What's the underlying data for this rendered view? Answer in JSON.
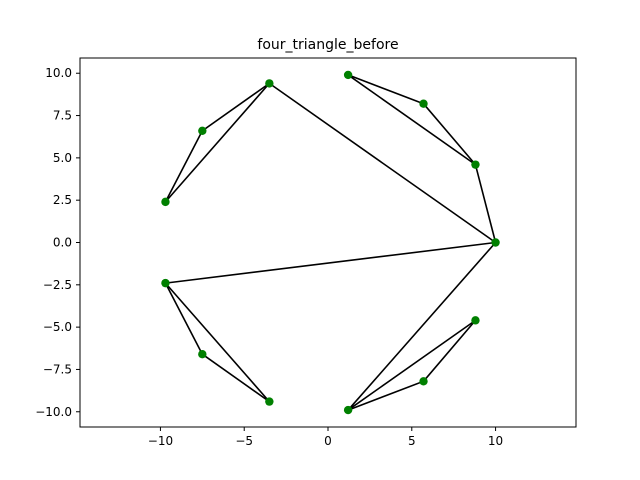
{
  "chart_data": {
    "type": "scatter",
    "title": "four_triangle_before",
    "xlabel": "",
    "ylabel": "",
    "xlim": [
      -14.8,
      14.8
    ],
    "ylim": [
      -10.9,
      10.9
    ],
    "xticks": [
      -10,
      -5,
      0,
      5,
      10
    ],
    "xtick_labels": [
      "−10",
      "−5",
      "0",
      "5",
      "10"
    ],
    "yticks": [
      -10,
      -7.5,
      -5,
      -2.5,
      0,
      2.5,
      5,
      7.5,
      10
    ],
    "ytick_labels": [
      "−10.0",
      "−7.5",
      "−5.0",
      "−2.5",
      "0.0",
      "2.5",
      "5.0",
      "7.5",
      "10.0"
    ],
    "grid": false,
    "point_color": "#008000",
    "line_color": "#000000",
    "points": [
      {
        "x": 10.0,
        "y": 0.0
      },
      {
        "x": 8.8,
        "y": 4.6
      },
      {
        "x": 5.7,
        "y": 8.2
      },
      {
        "x": 1.2,
        "y": 9.9
      },
      {
        "x": -3.5,
        "y": 9.4
      },
      {
        "x": -7.5,
        "y": 6.6
      },
      {
        "x": -9.7,
        "y": 2.4
      },
      {
        "x": -9.7,
        "y": -2.4
      },
      {
        "x": -7.5,
        "y": -6.6
      },
      {
        "x": -3.5,
        "y": -9.4
      },
      {
        "x": 1.2,
        "y": -9.9
      },
      {
        "x": 5.7,
        "y": -8.2
      },
      {
        "x": 8.8,
        "y": -4.6
      }
    ],
    "edges": [
      [
        0,
        1
      ],
      [
        1,
        2
      ],
      [
        2,
        3
      ],
      [
        3,
        1
      ],
      [
        0,
        4
      ],
      [
        4,
        5
      ],
      [
        5,
        6
      ],
      [
        6,
        4
      ],
      [
        0,
        7
      ],
      [
        7,
        8
      ],
      [
        8,
        9
      ],
      [
        9,
        7
      ],
      [
        0,
        10
      ],
      [
        10,
        11
      ],
      [
        11,
        12
      ],
      [
        12,
        10
      ]
    ]
  }
}
